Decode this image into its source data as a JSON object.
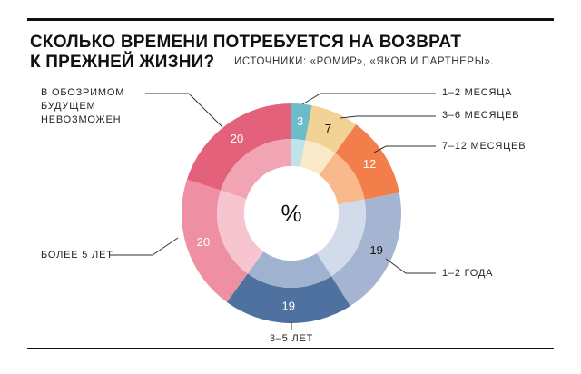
{
  "header": {
    "title_line1": "СКОЛЬКО ВРЕМЕНИ ПОТРЕБУЕТСЯ НА ВОЗВРАТ",
    "title_line2": "К ПРЕЖНЕЙ ЖИЗНИ?",
    "source": "ИСТОЧНИКИ: «РОМИР», «ЯКОВ И ПАРТНЕРЫ»."
  },
  "chart_data": {
    "type": "pie",
    "subtype": "double-ring donut",
    "center_label": "%",
    "unit": "%",
    "slices": [
      {
        "label": "1–2 МЕСЯЦА",
        "value": 3,
        "outer_color": "#6bbcc8",
        "inner_color": "#bfe3e8",
        "value_color": "#ffffff"
      },
      {
        "label": "3–6 МЕСЯЦЕВ",
        "value": 7,
        "outer_color": "#f3d296",
        "inner_color": "#f9e9c9",
        "value_color": "#111111"
      },
      {
        "label": "7–12 МЕСЯЦЕВ",
        "value": 12,
        "outer_color": "#f27e4c",
        "inner_color": "#f8b98c",
        "value_color": "#ffffff"
      },
      {
        "label": "1–2 ГОДА",
        "value": 19,
        "outer_color": "#a4b4d1",
        "inner_color": "#d2dbea",
        "value_color": "#111111"
      },
      {
        "label": "3–5 ЛЕТ",
        "value": 19,
        "outer_color": "#4f71a0",
        "inner_color": "#9fb2cf",
        "value_color": "#ffffff"
      },
      {
        "label": "БОЛЕЕ 5 ЛЕТ",
        "value": 20,
        "outer_color": "#ee8fa4",
        "inner_color": "#f6c5d0",
        "value_color": "#ffffff"
      },
      {
        "label": "В ОБОЗРИМОМ БУДУЩЕМ НЕВОЗМОЖЕН",
        "label_lines": [
          "В ОБОЗРИМОМ",
          "БУДУЩЕМ",
          "НЕВОЗМОЖЕН"
        ],
        "value": 20,
        "outer_color": "#e4617c",
        "inner_color": "#f0a4b4",
        "value_color": "#ffffff"
      }
    ]
  }
}
